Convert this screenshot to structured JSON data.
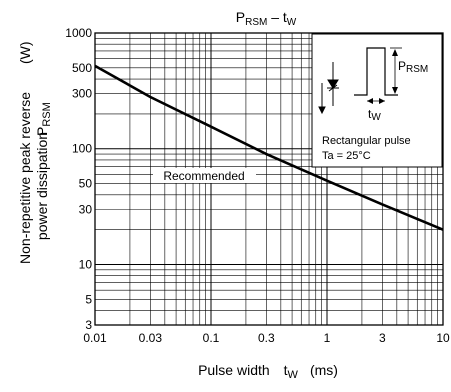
{
  "chart_data": {
    "type": "line",
    "title": {
      "main": "P",
      "main_sub": "RSM",
      "sep": " – t",
      "var_sub": "W"
    },
    "xlabel": {
      "text": "Pulse width",
      "var": "t",
      "var_sub": "W",
      "unit": "(ms)"
    },
    "ylabel": {
      "line1": "Non-repetitive peak reverse",
      "line2": "power dissipation",
      "var": "P",
      "var_sub": "RSM",
      "unit": "(W)"
    },
    "x_scale": "log",
    "y_scale": "log",
    "xlim": [
      0.01,
      10
    ],
    "ylim": [
      3,
      1000
    ],
    "x_ticks": [
      {
        "v": 0.01,
        "label": "0.01"
      },
      {
        "v": 0.03,
        "label": "0.03"
      },
      {
        "v": 0.1,
        "label": "0.1"
      },
      {
        "v": 0.3,
        "label": "0.3"
      },
      {
        "v": 1,
        "label": "1"
      },
      {
        "v": 3,
        "label": "3"
      },
      {
        "v": 10,
        "label": "10"
      }
    ],
    "y_ticks": [
      {
        "v": 3,
        "label": "3"
      },
      {
        "v": 5,
        "label": "5"
      },
      {
        "v": 10,
        "label": "10"
      },
      {
        "v": 30,
        "label": "30"
      },
      {
        "v": 50,
        "label": "50"
      },
      {
        "v": 100,
        "label": "100"
      },
      {
        "v": 300,
        "label": "300"
      },
      {
        "v": 500,
        "label": "500"
      },
      {
        "v": 1000,
        "label": "1000"
      }
    ],
    "x_minor_grid": [
      0.02,
      0.03,
      0.04,
      0.05,
      0.06,
      0.07,
      0.08,
      0.09,
      0.2,
      0.3,
      0.4,
      0.5,
      0.6,
      0.7,
      0.8,
      0.9,
      2,
      3,
      4,
      5,
      6,
      7,
      8,
      9
    ],
    "y_minor_grid": [
      4,
      5,
      6,
      7,
      8,
      9,
      20,
      30,
      40,
      50,
      60,
      70,
      80,
      90,
      200,
      300,
      400,
      500,
      600,
      700,
      800,
      900
    ],
    "grid": true,
    "series": [
      {
        "x": [
          0.01,
          0.03,
          0.1,
          0.3,
          1,
          3,
          10
        ],
        "y": [
          520,
          280,
          155,
          90,
          53,
          33,
          20
        ]
      }
    ],
    "annotation": "Recommended",
    "inset": {
      "var": "P",
      "var_sub": "RSM",
      "tw": "t",
      "tw_sub": "W",
      "line1": "Rectangular pulse",
      "line2": "Ta = 25°C"
    }
  }
}
